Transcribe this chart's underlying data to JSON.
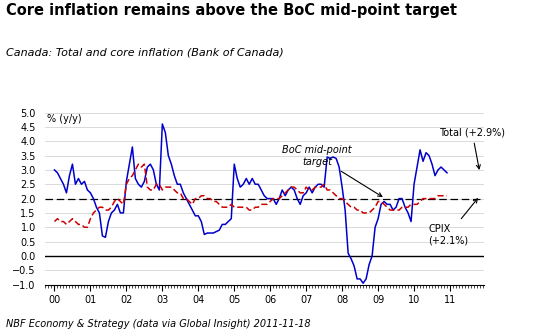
{
  "title": "Core inflation remains above the BoC mid-point target",
  "subtitle": "Canada: Total and core inflation (Bank of Canada)",
  "footnote": "NBF Economy & Strategy (data via Global Insight) 2011-11-18",
  "ylabel": "% (y/y)",
  "ylim": [
    -1.0,
    5.0
  ],
  "yticks": [
    -1.0,
    -0.5,
    0.0,
    0.5,
    1.0,
    1.5,
    2.0,
    2.5,
    3.0,
    3.5,
    4.0,
    4.5,
    5.0
  ],
  "boc_target": 2.0,
  "total_label": "Total (+2.9%)",
  "cpix_label": "CPIX\n(+2.1%)",
  "boc_label": "BoC mid-point\ntarget",
  "total_color": "#0000CC",
  "cpix_color": "#CC0000",
  "boc_color": "#000000",
  "xtick_labels": [
    "00",
    "01",
    "02",
    "03",
    "04",
    "05",
    "06",
    "07",
    "08",
    "09",
    "10",
    "11"
  ],
  "total": [
    3.0,
    2.9,
    2.7,
    2.5,
    2.2,
    2.8,
    3.2,
    2.5,
    2.7,
    2.5,
    2.6,
    2.3,
    2.2,
    2.0,
    1.7,
    1.5,
    0.7,
    0.65,
    1.2,
    1.5,
    1.6,
    1.8,
    1.5,
    1.5,
    2.6,
    3.2,
    3.8,
    2.7,
    2.5,
    2.4,
    2.6,
    3.1,
    3.2,
    3.0,
    2.5,
    2.3,
    4.6,
    4.3,
    3.5,
    3.2,
    2.8,
    2.5,
    2.5,
    2.2,
    2.0,
    1.8,
    1.6,
    1.4,
    1.4,
    1.2,
    0.75,
    0.8,
    0.8,
    0.8,
    0.85,
    0.9,
    1.1,
    1.1,
    1.2,
    1.3,
    3.2,
    2.7,
    2.4,
    2.5,
    2.7,
    2.5,
    2.7,
    2.5,
    2.5,
    2.3,
    2.1,
    2.0,
    2.0,
    2.0,
    1.8,
    2.0,
    2.3,
    2.1,
    2.3,
    2.4,
    2.3,
    2.0,
    1.8,
    2.1,
    2.2,
    2.4,
    2.2,
    2.4,
    2.5,
    2.5,
    2.4,
    3.45,
    3.4,
    3.45,
    3.4,
    3.1,
    2.4,
    1.6,
    0.1,
    -0.1,
    -0.35,
    -0.8,
    -0.8,
    -0.95,
    -0.8,
    -0.3,
    0.0,
    1.0,
    1.3,
    1.8,
    1.9,
    1.8,
    1.8,
    1.6,
    1.7,
    2.0,
    2.0,
    1.7,
    1.5,
    1.2,
    2.5,
    3.1,
    3.7,
    3.3,
    3.6,
    3.5,
    3.2,
    2.8,
    3.0,
    3.1,
    3.0,
    2.9
  ],
  "cpix": [
    1.2,
    1.3,
    1.2,
    1.2,
    1.1,
    1.2,
    1.3,
    1.2,
    1.1,
    1.1,
    1.0,
    1.0,
    1.3,
    1.5,
    1.6,
    1.7,
    1.7,
    1.6,
    1.6,
    1.7,
    1.9,
    2.0,
    1.9,
    1.8,
    2.5,
    2.7,
    2.8,
    3.0,
    3.2,
    3.1,
    3.2,
    2.4,
    2.3,
    2.3,
    2.5,
    2.5,
    2.3,
    2.4,
    2.4,
    2.4,
    2.3,
    2.2,
    2.2,
    2.0,
    2.0,
    1.9,
    1.8,
    2.0,
    2.0,
    2.1,
    2.1,
    2.0,
    2.0,
    1.9,
    1.9,
    1.8,
    1.7,
    1.7,
    1.7,
    1.8,
    1.7,
    1.7,
    1.7,
    1.7,
    1.7,
    1.6,
    1.6,
    1.7,
    1.7,
    1.8,
    1.8,
    1.8,
    1.9,
    2.0,
    2.0,
    2.0,
    2.1,
    2.2,
    2.3,
    2.4,
    2.4,
    2.3,
    2.2,
    2.2,
    2.4,
    2.3,
    2.3,
    2.4,
    2.4,
    2.4,
    2.5,
    2.3,
    2.3,
    2.2,
    2.1,
    2.0,
    2.0,
    1.9,
    1.8,
    1.7,
    1.7,
    1.6,
    1.6,
    1.5,
    1.5,
    1.5,
    1.6,
    1.7,
    1.9,
    1.9,
    1.8,
    1.7,
    1.6,
    1.6,
    1.6,
    1.6,
    1.7,
    1.7,
    1.7,
    1.8,
    1.8,
    1.8,
    1.9,
    2.0,
    2.0,
    2.0,
    2.0,
    2.0,
    2.1,
    2.1,
    2.1,
    2.1
  ]
}
